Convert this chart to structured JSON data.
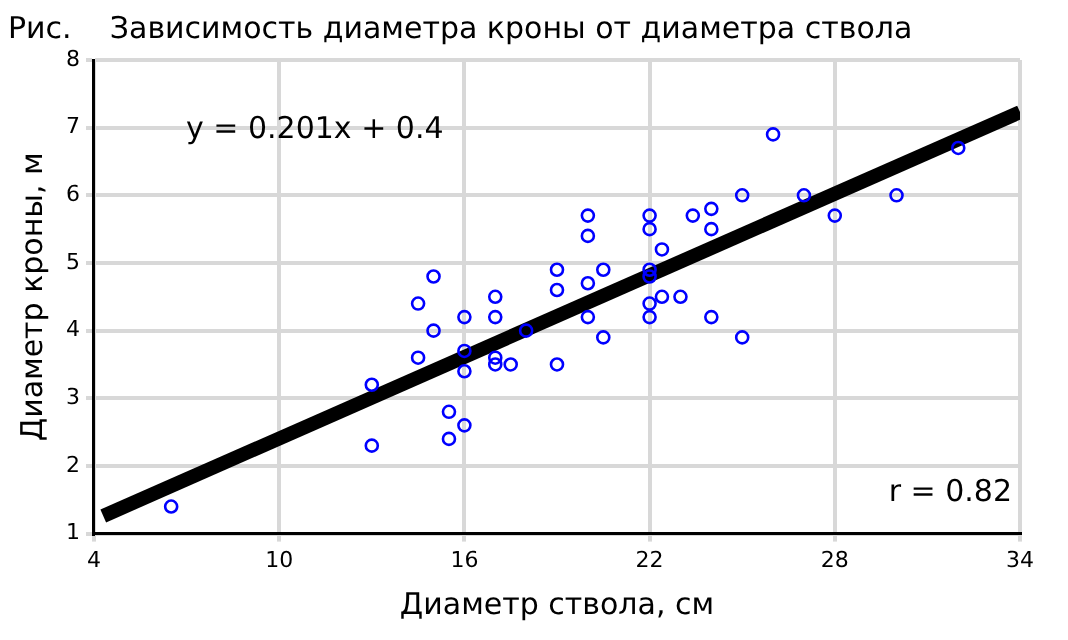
{
  "chart_data": {
    "type": "scatter",
    "title": "Рис.    Зависимость диаметра кроны от диаметра ствола",
    "xlabel": "Диаметр ствола, см",
    "ylabel": "Диаметр кроны, м",
    "xlim": [
      4,
      34
    ],
    "xticks": [
      4,
      10,
      16,
      22,
      28,
      34
    ],
    "ylim": [
      1,
      8
    ],
    "yticks": [
      1,
      2,
      3,
      4,
      5,
      6,
      7,
      8
    ],
    "grid": true,
    "legend": false,
    "marker": "circle",
    "annotations": [
      "y = 0.201x + 0.4",
      "r = 0.82"
    ],
    "series": [
      {
        "type": "scatter",
        "color": "#0000ff",
        "x": [
          6.5,
          13,
          13,
          14.5,
          15,
          15,
          14.5,
          15.5,
          15.5,
          16,
          16,
          16,
          16,
          17,
          17,
          17,
          17,
          17.5,
          18,
          19,
          19,
          19,
          20,
          20,
          20,
          20,
          20.5,
          20.5,
          22,
          22,
          22,
          22,
          22,
          22,
          22.4,
          22.4,
          23,
          23.4,
          24,
          24,
          24,
          25,
          25,
          26,
          27,
          28,
          30,
          32
        ],
        "values": [
          1.4,
          2.3,
          3.2,
          4.4,
          4.8,
          4.0,
          3.6,
          2.8,
          2.4,
          2.6,
          3.4,
          3.7,
          4.2,
          4.5,
          4.2,
          3.6,
          3.5,
          3.5,
          4.0,
          4.9,
          4.6,
          3.5,
          5.7,
          5.4,
          4.7,
          4.2,
          4.9,
          3.9,
          5.7,
          5.5,
          4.9,
          4.8,
          4.4,
          4.2,
          5.2,
          4.5,
          4.5,
          5.7,
          5.8,
          5.5,
          4.2,
          6.0,
          3.9,
          6.9,
          6.0,
          5.7,
          6.0,
          6.7
        ]
      },
      {
        "type": "line",
        "color": "#000000",
        "marker": "none",
        "x": [
          4.3,
          34
        ],
        "values": [
          1.26,
          7.23
        ]
      }
    ]
  }
}
